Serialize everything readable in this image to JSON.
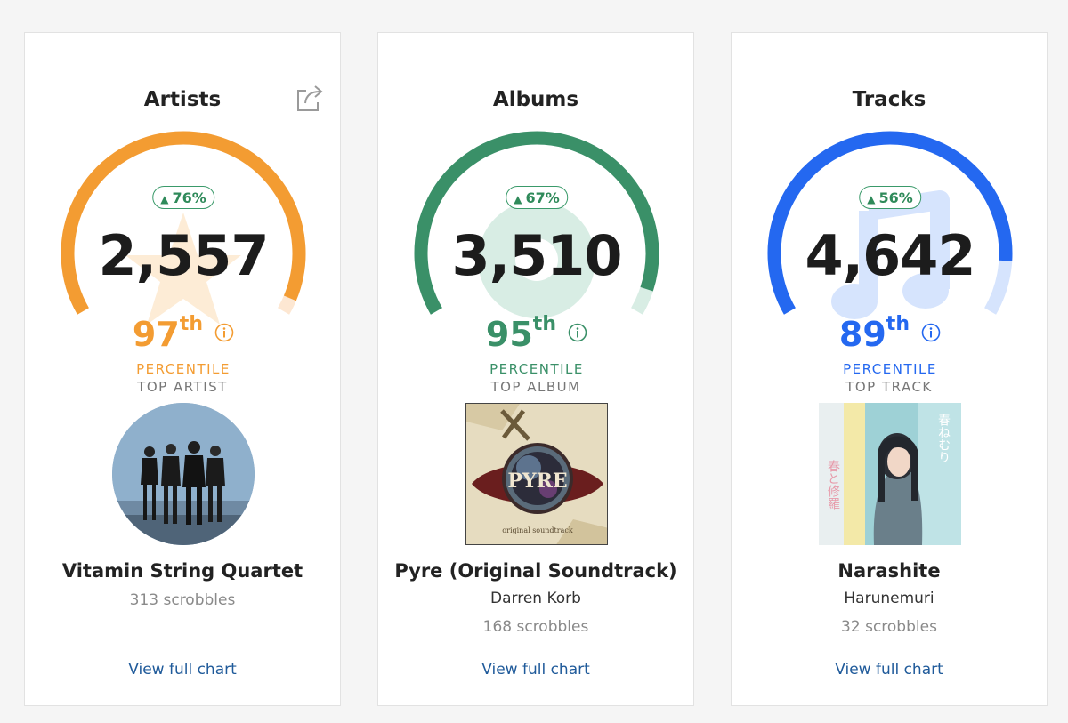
{
  "cards": {
    "artists": {
      "title": "Artists",
      "share_icon": "share-icon",
      "change": "76%",
      "change_direction": "up",
      "total": "2,557",
      "percentile": "97",
      "percentile_suffix": "th",
      "percentile_label": "PERCENTILE",
      "percentile_fraction": 0.97,
      "color": "#f39c32",
      "track_color": "#fde7d2",
      "watermark_icon": "star-icon",
      "top_label": "TOP ARTIST",
      "top_name": "Vitamin String Quartet",
      "scrobbles": "313 scrobbles",
      "view_link": "View full chart"
    },
    "albums": {
      "title": "Albums",
      "change": "67%",
      "change_direction": "up",
      "total": "3,510",
      "percentile": "95",
      "percentile_suffix": "th",
      "percentile_label": "PERCENTILE",
      "percentile_fraction": 0.95,
      "color": "#3a9068",
      "track_color": "#d8ede4",
      "watermark_icon": "disc-icon",
      "top_label": "TOP ALBUM",
      "top_name": "Pyre (Original Soundtrack)",
      "top_artist": "Darren Korb",
      "scrobbles": "168 scrobbles",
      "view_link": "View full chart",
      "album_art_text": "PYRE",
      "album_art_caption": "original soundtrack"
    },
    "tracks": {
      "title": "Tracks",
      "change": "56%",
      "change_direction": "up",
      "total": "4,642",
      "percentile": "89",
      "percentile_suffix": "th",
      "percentile_label": "PERCENTILE",
      "percentile_fraction": 0.89,
      "color": "#2468f0",
      "track_color": "#d6e4fd",
      "watermark_icon": "music-note-icon",
      "top_label": "TOP TRACK",
      "top_name": "Narashite",
      "top_artist": "Harunemuri",
      "scrobbles": "32 scrobbles",
      "view_link": "View full chart",
      "cover_text_right": "春ねむり",
      "cover_text_left": "春と修羅"
    }
  },
  "colors": {
    "change_badge": "#2f8a5a",
    "link": "#1f5a9a",
    "muted": "#8a8a8a"
  }
}
